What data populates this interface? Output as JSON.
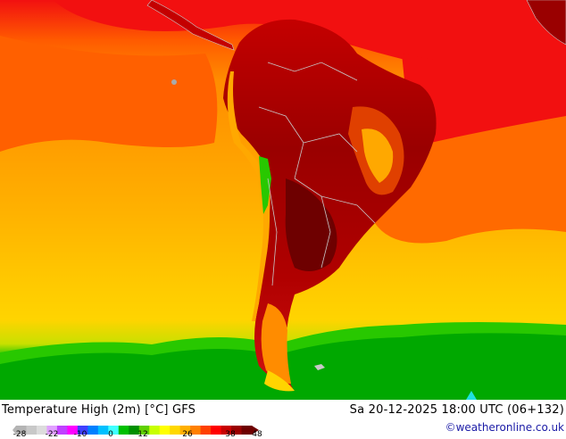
{
  "map": {
    "title": "Temperature High (2m) [°C] GFS",
    "datetime": "Sa 20-12-2025 18:00 UTC (06+132)",
    "credit": "©weatheronline.co.uk",
    "colors": {
      "very_hot": "#6e0000",
      "hot_dark": "#9a0000",
      "hot": "#c40000",
      "red": "#f21010",
      "orange_red": "#ff5a00",
      "orange": "#ff8c00",
      "amber": "#ffa800",
      "yellow_orange": "#ffc000",
      "yellow": "#ffd400",
      "green_light": "#28c800",
      "green": "#00a800",
      "green_dark": "#009000",
      "mountain": "#aaaaaa",
      "border": "#c8c8c8",
      "ice": "#20e0e0"
    }
  },
  "legend": {
    "ticks": [
      "-28",
      "-22",
      "-10",
      "0",
      "12",
      "26",
      "38",
      "48"
    ],
    "colors": [
      "#b4b4b4",
      "#c8c8c8",
      "#dcdcdc",
      "#e0a0ff",
      "#c040ff",
      "#ff00ff",
      "#4040ff",
      "#0080ff",
      "#00c0ff",
      "#40ffff",
      "#00c000",
      "#009000",
      "#60d000",
      "#c8ff00",
      "#ffff00",
      "#ffd800",
      "#ffb000",
      "#ff8000",
      "#ff4000",
      "#ff0000",
      "#c80000",
      "#9a0000",
      "#6e0000"
    ]
  }
}
